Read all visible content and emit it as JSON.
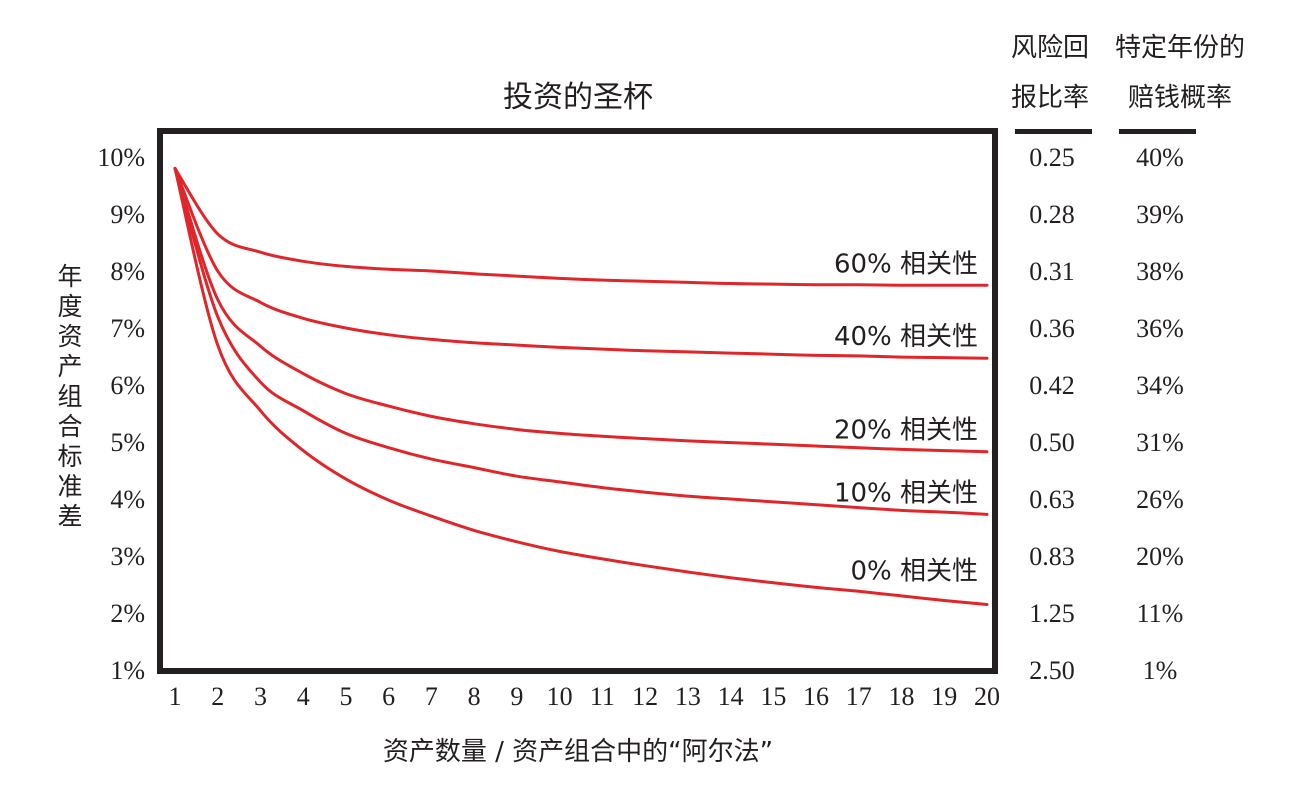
{
  "chart_data": {
    "type": "line",
    "title": "投资的圣杯",
    "xlabel": "资产数量 / 资产组合中的“阿尔法”",
    "ylabel": "年度资产组合标准差",
    "x": [
      1,
      2,
      3,
      4,
      5,
      6,
      7,
      8,
      9,
      10,
      11,
      12,
      13,
      14,
      15,
      16,
      17,
      18,
      19,
      20
    ],
    "xlim": [
      1,
      20
    ],
    "ylim": [
      1,
      10
    ],
    "y_ticks": [
      "1%",
      "2%",
      "3%",
      "4%",
      "5%",
      "6%",
      "7%",
      "8%",
      "9%",
      "10%"
    ],
    "series": [
      {
        "name": "60% 相关性",
        "values": [
          9.8,
          8.65,
          8.33,
          8.17,
          8.08,
          8.03,
          8.0,
          7.95,
          7.91,
          7.87,
          7.84,
          7.82,
          7.8,
          7.78,
          7.77,
          7.76,
          7.76,
          7.75,
          7.75,
          7.75
        ]
      },
      {
        "name": "40% 相关性",
        "values": [
          9.8,
          8.0,
          7.45,
          7.17,
          7.0,
          6.88,
          6.8,
          6.74,
          6.7,
          6.66,
          6.63,
          6.6,
          6.58,
          6.56,
          6.54,
          6.52,
          6.51,
          6.49,
          6.48,
          6.47
        ]
      },
      {
        "name": "20% 相关性",
        "values": [
          9.8,
          7.5,
          6.68,
          6.2,
          5.85,
          5.63,
          5.45,
          5.32,
          5.22,
          5.15,
          5.1,
          5.06,
          5.02,
          4.99,
          4.96,
          4.93,
          4.9,
          4.87,
          4.85,
          4.83
        ]
      },
      {
        "name": "10% 相关性",
        "values": [
          9.8,
          7.2,
          6.05,
          5.55,
          5.15,
          4.9,
          4.7,
          4.55,
          4.4,
          4.3,
          4.2,
          4.12,
          4.05,
          4.0,
          3.95,
          3.9,
          3.85,
          3.8,
          3.77,
          3.73
        ]
      },
      {
        "name": "0% 相关性",
        "values": [
          9.8,
          6.7,
          5.55,
          4.85,
          4.35,
          3.98,
          3.7,
          3.45,
          3.25,
          3.08,
          2.95,
          2.83,
          2.72,
          2.62,
          2.53,
          2.45,
          2.38,
          2.3,
          2.22,
          2.15
        ]
      }
    ],
    "colors": {
      "line": "#e0262a",
      "frame": "#231f20"
    },
    "grid": false,
    "side_table": {
      "columns": [
        {
          "header_line1": "风险回",
          "header_line2": "报比率",
          "values": [
            "0.25",
            "0.28",
            "0.31",
            "0.36",
            "0.42",
            "0.50",
            "0.63",
            "0.83",
            "1.25",
            "2.50"
          ]
        },
        {
          "header_line1": "特定年份的",
          "header_line2": "赔钱概率",
          "values": [
            "40%",
            "39%",
            "38%",
            "36%",
            "34%",
            "31%",
            "26%",
            "20%",
            "11%",
            "1%"
          ]
        }
      ]
    }
  }
}
